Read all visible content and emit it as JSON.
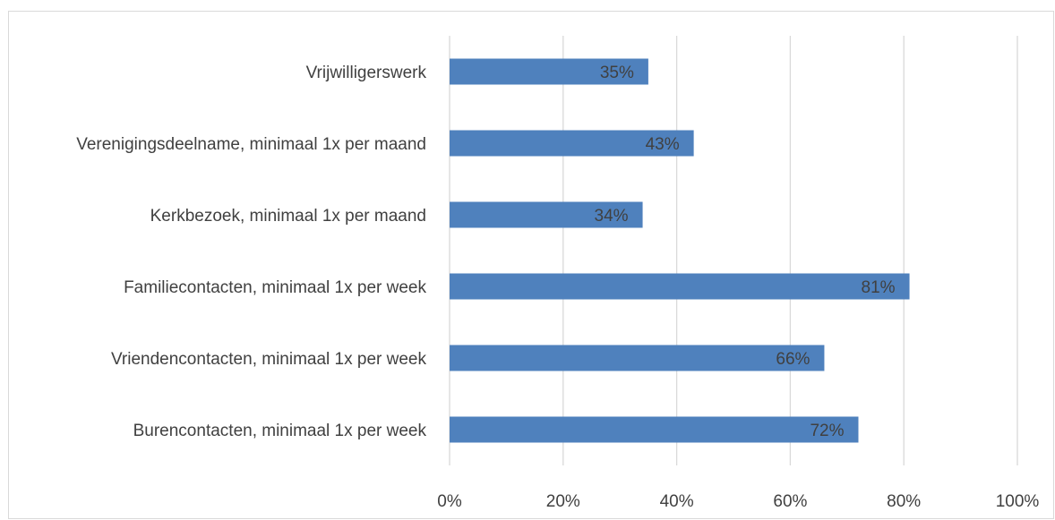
{
  "chart_data": {
    "type": "bar",
    "orientation": "horizontal",
    "categories": [
      "Vrijwilligerswerk",
      "Verenigingsdeelname, minimaal 1x per maand",
      "Kerkbezoek, minimaal 1x per maand",
      "Familiecontacten, minimaal 1x per week",
      "Vriendencontacten, minimaal 1x per week",
      "Burencontacten, minimaal 1x per week"
    ],
    "values": [
      35,
      43,
      34,
      81,
      66,
      72
    ],
    "data_labels": [
      "35%",
      "43%",
      "34%",
      "81%",
      "66%",
      "72%"
    ],
    "xlim": [
      0,
      100
    ],
    "xticks": [
      0,
      20,
      40,
      60,
      80,
      100
    ],
    "xtick_labels": [
      "0%",
      "20%",
      "40%",
      "60%",
      "80%",
      "100%"
    ],
    "grid": "vertical",
    "legend": "none",
    "colors": {
      "bar": "#4f81bd",
      "grid": "#d9d9d9",
      "text": "#404040"
    }
  }
}
